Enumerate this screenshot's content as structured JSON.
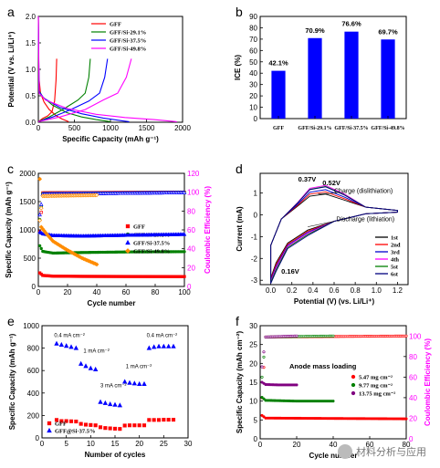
{
  "chart_data": [
    {
      "panel": "a",
      "type": "line",
      "xlabel": "Specific Capacity (mAh g⁻¹)",
      "ylabel": "Potential (V vs. Li/Li⁺)",
      "xlim": [
        0,
        2000
      ],
      "ylim": [
        0,
        2.0
      ],
      "xticks": [
        0,
        500,
        1000,
        1500,
        2000
      ],
      "yticks": [
        0.0,
        0.5,
        1.0,
        1.5,
        2.0
      ],
      "legend_position": "top-right",
      "series": [
        {
          "name": "GFF",
          "color": "#ff0000",
          "discharge": [
            [
              0,
              2.0
            ],
            [
              8,
              0.85
            ],
            [
              30,
              0.55
            ],
            [
              80,
              0.38
            ],
            [
              150,
              0.24
            ],
            [
              250,
              0.12
            ],
            [
              330,
              0.06
            ],
            [
              420,
              0.01
            ]
          ],
          "charge": [
            [
              0,
              0.01
            ],
            [
              60,
              0.07
            ],
            [
              130,
              0.12
            ],
            [
              190,
              0.2
            ],
            [
              225,
              0.4
            ],
            [
              245,
              0.8
            ],
            [
              255,
              1.2
            ]
          ]
        },
        {
          "name": "GFF/Si-29.1%",
          "color": "#008000",
          "discharge": [
            [
              0,
              2.0
            ],
            [
              10,
              0.6
            ],
            [
              60,
              0.48
            ],
            [
              200,
              0.32
            ],
            [
              400,
              0.18
            ],
            [
              600,
              0.1
            ],
            [
              800,
              0.05
            ],
            [
              1000,
              0.01
            ]
          ],
          "charge": [
            [
              0,
              0.01
            ],
            [
              150,
              0.1
            ],
            [
              350,
              0.25
            ],
            [
              550,
              0.42
            ],
            [
              650,
              0.55
            ],
            [
              700,
              0.85
            ],
            [
              720,
              1.2
            ]
          ]
        },
        {
          "name": "GFF/Si-37.5%",
          "color": "#0000ff",
          "discharge": [
            [
              0,
              2.0
            ],
            [
              10,
              0.58
            ],
            [
              80,
              0.45
            ],
            [
              300,
              0.28
            ],
            [
              600,
              0.16
            ],
            [
              900,
              0.08
            ],
            [
              1150,
              0.03
            ],
            [
              1260,
              0.01
            ]
          ],
          "charge": [
            [
              0,
              0.01
            ],
            [
              200,
              0.1
            ],
            [
              450,
              0.24
            ],
            [
              700,
              0.4
            ],
            [
              850,
              0.55
            ],
            [
              920,
              0.85
            ],
            [
              960,
              1.2
            ]
          ]
        },
        {
          "name": "GFF/Si-49.8%",
          "color": "#ff00ff",
          "discharge": [
            [
              0,
              2.0
            ],
            [
              12,
              0.55
            ],
            [
              100,
              0.42
            ],
            [
              400,
              0.26
            ],
            [
              800,
              0.15
            ],
            [
              1200,
              0.09
            ],
            [
              1600,
              0.05
            ],
            [
              1920,
              0.01
            ]
          ],
          "charge": [
            [
              0,
              0.01
            ],
            [
              300,
              0.1
            ],
            [
              650,
              0.24
            ],
            [
              900,
              0.42
            ],
            [
              1100,
              0.55
            ],
            [
              1220,
              0.85
            ],
            [
              1290,
              1.2
            ]
          ]
        }
      ]
    },
    {
      "panel": "b",
      "type": "bar",
      "ylabel": "ICE (%)",
      "ylim": [
        0,
        90
      ],
      "yticks": [
        0,
        10,
        20,
        30,
        40,
        50,
        60,
        70,
        80,
        90
      ],
      "categories": [
        "GFF",
        "GFF/Si-29.1%",
        "GFF/Si-37.5%",
        "GFF/Si-49.8%"
      ],
      "values": [
        42.1,
        70.9,
        76.6,
        69.7
      ],
      "data_labels": [
        "42.1%",
        "70.9%",
        "76.6%",
        "69.7%"
      ],
      "bar_color": "#0000ff"
    },
    {
      "panel": "c",
      "type": "scatter",
      "xlabel": "Cycle number",
      "ylabel": "Specific Capacity (mAh g⁻¹)",
      "ylabel_right": "Coulombic Efficiency (%)",
      "xlim": [
        0,
        100
      ],
      "ylim": [
        0,
        2000
      ],
      "ylim_right": [
        0,
        120
      ],
      "xticks": [
        0,
        20,
        40,
        60,
        80,
        100
      ],
      "yticks": [
        0,
        500,
        1000,
        1500,
        2000
      ],
      "yticks_right": [
        0,
        20,
        40,
        60,
        80,
        100,
        120
      ],
      "legend_position": "center-right",
      "series": [
        {
          "name": "GFF",
          "color": "#ff0000",
          "capacity": [
            [
              1,
              240
            ],
            [
              3,
              195
            ],
            [
              10,
              182
            ],
            [
              30,
              178
            ],
            [
              60,
              176
            ],
            [
              100,
              175
            ]
          ],
          "ce": [
            [
              1,
              58
            ],
            [
              3,
              99.3
            ],
            [
              100,
              100
            ]
          ]
        },
        {
          "name": "GFF/Si-29.1%",
          "color": "#008000",
          "capacity": [
            [
              1,
              720
            ],
            [
              3,
              620
            ],
            [
              10,
              590
            ],
            [
              30,
              600
            ],
            [
              60,
              610
            ],
            [
              100,
              615
            ]
          ],
          "ce": [
            [
              1,
              71
            ],
            [
              3,
              98.5
            ],
            [
              100,
              99.8
            ]
          ]
        },
        {
          "name": "GFF/Si-37.5%",
          "color": "#0000ff",
          "capacity": [
            [
              1,
              960
            ],
            [
              3,
              930
            ],
            [
              10,
              900
            ],
            [
              30,
              890
            ],
            [
              60,
              905
            ],
            [
              100,
              920
            ]
          ],
          "ce": [
            [
              1,
              76
            ],
            [
              3,
              98
            ],
            [
              100,
              99.5
            ]
          ]
        },
        {
          "name": "GFF/Si-49.8%",
          "color": "#ff8c00",
          "capacity": [
            [
              1,
              1900
            ],
            [
              2,
              1050
            ],
            [
              5,
              950
            ],
            [
              10,
              800
            ],
            [
              20,
              640
            ],
            [
              30,
              500
            ],
            [
              40,
              390
            ]
          ],
          "ce": [
            [
              1,
              70
            ],
            [
              3,
              96
            ],
            [
              40,
              97
            ]
          ]
        }
      ]
    },
    {
      "panel": "d",
      "type": "line",
      "xlabel": "Potential (V) (vs. Li/Li⁺)",
      "ylabel": "Current (mA)",
      "xlim": [
        -0.1,
        1.3
      ],
      "ylim": [
        -3.2,
        1.9
      ],
      "xticks": [
        0.0,
        0.2,
        0.4,
        0.6,
        0.8,
        1.0,
        1.2
      ],
      "yticks": [
        -3,
        -2,
        -1,
        0,
        1
      ],
      "annotations": [
        "0.37V",
        "0.52V",
        "Charge (dislithiation)",
        "Discharge (lithiation)",
        "0.16V"
      ],
      "legend_position": "bottom-right",
      "series": [
        {
          "name": "1st",
          "color": "#000000",
          "peak": 0.95
        },
        {
          "name": "2nd",
          "color": "#ff0000",
          "peak": 1.05
        },
        {
          "name": "3rd",
          "color": "#0000cd",
          "peak": 1.15
        },
        {
          "name": "4th",
          "color": "#ff00ff",
          "peak": 1.35
        },
        {
          "name": "5st",
          "color": "#008000",
          "peak": 1.3
        },
        {
          "name": "6st",
          "color": "#000080",
          "peak": 1.28
        }
      ]
    },
    {
      "panel": "e",
      "type": "scatter",
      "xlabel": "Number of cycles",
      "ylabel": "Specific Capacity (mAh g⁻¹)",
      "xlim": [
        0,
        30
      ],
      "ylim": [
        0,
        1000
      ],
      "xticks": [
        0,
        5,
        10,
        15,
        20,
        25,
        30
      ],
      "yticks": [
        0,
        200,
        400,
        600,
        800,
        1000
      ],
      "legend_position": "bottom-left",
      "annotations": [
        "0.4 mA cm⁻²",
        "1 mA cm⁻²",
        "3 mA cm⁻²",
        "1 mA cm⁻²",
        "0.4 mA cm⁻²"
      ],
      "series": [
        {
          "name": "GFF",
          "color": "#ff0000",
          "values": [
            [
              3,
              160
            ],
            [
              4,
              150
            ],
            [
              5,
              150
            ],
            [
              6,
              148
            ],
            [
              7,
              146
            ],
            [
              8,
              125
            ],
            [
              9,
              118
            ],
            [
              10,
              115
            ],
            [
              11,
              112
            ],
            [
              12,
              95
            ],
            [
              13,
              88
            ],
            [
              14,
              85
            ],
            [
              15,
              82
            ],
            [
              16,
              80
            ],
            [
              17,
              110
            ],
            [
              18,
              112
            ],
            [
              19,
              112
            ],
            [
              20,
              112
            ],
            [
              21,
              112
            ],
            [
              22,
              160
            ],
            [
              23,
              160
            ],
            [
              24,
              160
            ],
            [
              25,
              162
            ],
            [
              26,
              162
            ],
            [
              27,
              162
            ]
          ]
        },
        {
          "name": "GFF@Si-37.5%",
          "color": "#0000ff",
          "values": [
            [
              3,
              840
            ],
            [
              4,
              830
            ],
            [
              5,
              820
            ],
            [
              6,
              810
            ],
            [
              7,
              800
            ],
            [
              8,
              660
            ],
            [
              9,
              640
            ],
            [
              10,
              620
            ],
            [
              11,
              610
            ],
            [
              12,
              320
            ],
            [
              13,
              310
            ],
            [
              14,
              300
            ],
            [
              15,
              295
            ],
            [
              16,
              290
            ],
            [
              17,
              500
            ],
            [
              18,
              490
            ],
            [
              19,
              485
            ],
            [
              20,
              480
            ],
            [
              21,
              480
            ],
            [
              22,
              800
            ],
            [
              23,
              810
            ],
            [
              24,
              815
            ],
            [
              25,
              815
            ],
            [
              26,
              815
            ],
            [
              27,
              815
            ]
          ]
        }
      ]
    },
    {
      "panel": "f",
      "type": "scatter",
      "xlabel": "Cycle number",
      "ylabel": "Specific Capacity (mAh cm⁻²)",
      "ylabel_right": "Coulombic Efficiency (%)",
      "xlim": [
        0,
        80
      ],
      "ylim": [
        0,
        30
      ],
      "ylim_right": [
        0,
        110
      ],
      "xticks": [
        0,
        20,
        40,
        60,
        80
      ],
      "yticks": [
        0,
        5,
        10,
        15,
        20,
        25,
        30
      ],
      "yticks_right": [
        0,
        20,
        40,
        60,
        80,
        100
      ],
      "legend_title": "Anode mass loading",
      "legend_position": "center-right",
      "series": [
        {
          "name": "5.47 mg cm⁻²",
          "color": "#ff0000",
          "capacity": [
            [
              1,
              6.2
            ],
            [
              3,
              5.5
            ],
            [
              40,
              5.4
            ],
            [
              80,
              5.3
            ]
          ],
          "ce": [
            [
              1,
              40
            ],
            [
              3,
              99
            ],
            [
              80,
              100
            ]
          ]
        },
        {
          "name": "9.77 mg cm⁻²",
          "color": "#008000",
          "capacity": [
            [
              1,
              11
            ],
            [
              3,
              10.2
            ],
            [
              20,
              10.0
            ],
            [
              40,
              10.0
            ]
          ],
          "ce": [
            [
              1,
              60
            ],
            [
              3,
              99
            ],
            [
              40,
              100
            ]
          ]
        },
        {
          "name": "13.75 mg cm⁻²",
          "color": "#800080",
          "capacity": [
            [
              1,
              15
            ],
            [
              3,
              14.4
            ],
            [
              10,
              14.3
            ],
            [
              20,
              14.3
            ]
          ],
          "ce": [
            [
              1,
              70
            ],
            [
              3,
              99
            ],
            [
              20,
              100
            ]
          ]
        }
      ]
    }
  ],
  "panel_letters": [
    "a",
    "b",
    "c",
    "d",
    "e",
    "f"
  ],
  "watermark": "材料分析与应用"
}
